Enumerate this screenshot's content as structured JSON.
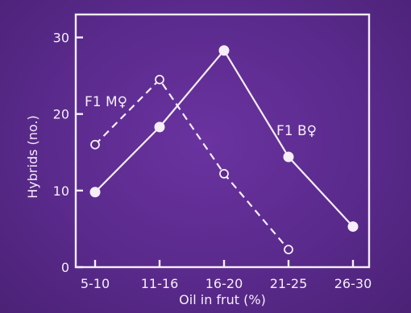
{
  "colors": {
    "background": "#5b2a8a",
    "ink": "#f5eef8"
  },
  "chart_data": {
    "type": "line",
    "xlabel": "Oil in frut (%)",
    "ylabel": "Hybrids (no.)",
    "categories": [
      "5-10",
      "11-16",
      "16-20",
      "21-25",
      "26-30"
    ],
    "yticks": [
      0,
      10,
      20,
      30
    ],
    "ylim": [
      0,
      33
    ],
    "grid": false,
    "series": [
      {
        "name": "F1 M♀",
        "style": "dashed",
        "marker": "open-circle",
        "values": [
          16,
          24.5,
          12.2,
          2.3,
          null
        ]
      },
      {
        "name": "F1 B♀",
        "style": "solid",
        "marker": "filled-circle",
        "values": [
          9.8,
          18.3,
          28.3,
          14.4,
          5.3
        ]
      }
    ]
  }
}
